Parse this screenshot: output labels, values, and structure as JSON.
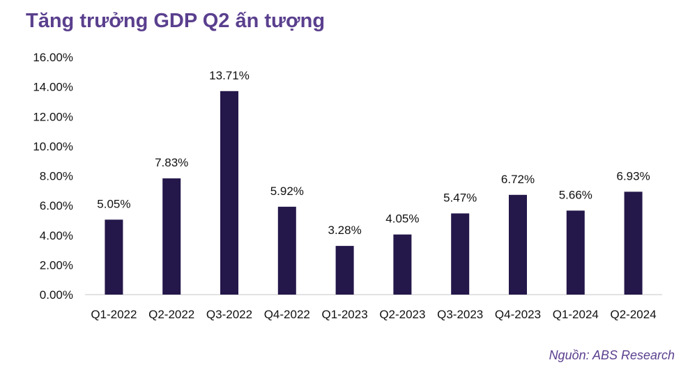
{
  "title": "Tăng trưởng GDP Q2 ấn tượng",
  "source": "Nguồn: ABS Research",
  "colors": {
    "bar": "#24174a",
    "title": "#5a3f8e",
    "axis": "#d9d9d9"
  },
  "chart_data": {
    "type": "bar",
    "title": "Tăng trưởng GDP Q2 ấn tượng",
    "xlabel": "",
    "ylabel": "",
    "categories": [
      "Q1-2022",
      "Q2-2022",
      "Q3-2022",
      "Q4-2022",
      "Q1-2023",
      "Q2-2023",
      "Q3-2023",
      "Q4-2023",
      "Q1-2024",
      "Q2-2024"
    ],
    "values": [
      5.05,
      7.83,
      13.71,
      5.92,
      3.28,
      4.05,
      5.47,
      6.72,
      5.66,
      6.93
    ],
    "data_labels": [
      "5.05%",
      "7.83%",
      "13.71%",
      "5.92%",
      "3.28%",
      "4.05%",
      "5.47%",
      "6.72%",
      "5.66%",
      "6.93%"
    ],
    "yticks": [
      "0.00%",
      "2.00%",
      "4.00%",
      "6.00%",
      "8.00%",
      "10.00%",
      "12.00%",
      "14.00%",
      "16.00%"
    ],
    "ylim": [
      0,
      16
    ],
    "grid": false,
    "legend": "none"
  }
}
